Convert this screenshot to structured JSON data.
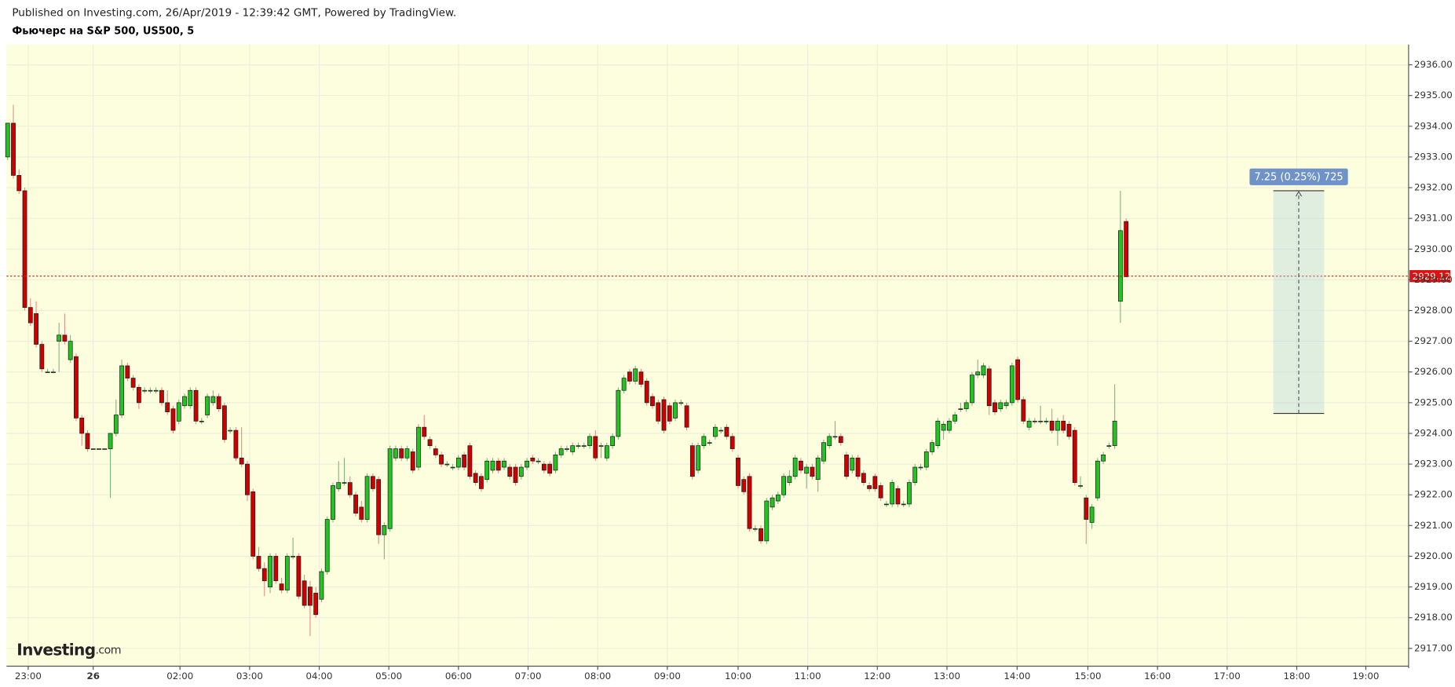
{
  "header": {
    "published": "Published on Investing.com, 26/Apr/2019 - 12:39:42 GMT, Powered by TradingView.",
    "instrument": "Фьючерс на S&P 500, US500, 5"
  },
  "logo": {
    "brand": "Investing",
    "suffix": ".com"
  },
  "chart_data": {
    "type": "candlestick",
    "up_color": "#21c421",
    "down_color": "#cc0000",
    "grid": true,
    "candles": [
      [
        2933.0,
        2934.1,
        2932.9,
        2934.1
      ],
      [
        2934.1,
        2934.7,
        2932.3,
        2932.4
      ],
      [
        2932.4,
        2932.6,
        2931.8,
        2931.9
      ],
      [
        2931.9,
        2932.0,
        2928.0,
        2928.1
      ],
      [
        2928.1,
        2928.4,
        2927.5,
        2927.6
      ],
      [
        2927.9,
        2928.3,
        2926.8,
        2926.9
      ],
      [
        2926.9,
        2927.0,
        2926.0,
        2926.1
      ],
      [
        2926.0,
        2926.1,
        2926.0,
        2926.0
      ],
      [
        2926.0,
        2926.1,
        2926.0,
        2926.0
      ],
      [
        2927.0,
        2927.6,
        2926.0,
        2927.2
      ],
      [
        2927.2,
        2927.9,
        2926.9,
        2927.0
      ],
      [
        2926.4,
        2927.2,
        2926.3,
        2927.0
      ],
      [
        2926.5,
        2926.6,
        2924.4,
        2924.5
      ],
      [
        2924.5,
        2924.6,
        2923.6,
        2924.0
      ],
      [
        2924.0,
        2924.1,
        2923.4,
        2923.5
      ],
      [
        2923.5,
        2923.5,
        2923.5,
        2923.5
      ],
      [
        2923.5,
        2923.5,
        2923.5,
        2923.5
      ],
      [
        2923.5,
        2923.5,
        2923.5,
        2923.5
      ],
      [
        2923.5,
        2924.0,
        2921.9,
        2924.0
      ],
      [
        2924.0,
        2925.1,
        2923.9,
        2924.6
      ],
      [
        2924.6,
        2926.4,
        2924.5,
        2926.2
      ],
      [
        2926.2,
        2926.3,
        2925.7,
        2925.8
      ],
      [
        2925.8,
        2925.9,
        2925.4,
        2925.5
      ],
      [
        2925.5,
        2925.6,
        2924.8,
        2925.0
      ],
      [
        2925.4,
        2925.5,
        2925.3,
        2925.4
      ],
      [
        2925.4,
        2925.5,
        2925.3,
        2925.4
      ],
      [
        2925.4,
        2925.5,
        2925.3,
        2925.4
      ],
      [
        2925.4,
        2925.5,
        2924.9,
        2925.0
      ],
      [
        2925.0,
        2925.4,
        2924.6,
        2924.7
      ],
      [
        2924.8,
        2924.9,
        2924.0,
        2924.1
      ],
      [
        2924.4,
        2925.1,
        2924.3,
        2925.0
      ],
      [
        2924.9,
        2925.3,
        2924.8,
        2925.2
      ],
      [
        2924.9,
        2925.5,
        2924.8,
        2925.4
      ],
      [
        2925.4,
        2925.5,
        2924.3,
        2924.4
      ],
      [
        2924.4,
        2924.5,
        2924.3,
        2924.4
      ],
      [
        2924.6,
        2925.3,
        2924.5,
        2925.2
      ],
      [
        2925.0,
        2925.4,
        2924.9,
        2925.2
      ],
      [
        2925.2,
        2925.3,
        2924.7,
        2924.8
      ],
      [
        2924.9,
        2925.0,
        2923.7,
        2923.8
      ],
      [
        2924.1,
        2924.2,
        2924.0,
        2924.1
      ],
      [
        2924.1,
        2924.2,
        2923.1,
        2923.2
      ],
      [
        2923.2,
        2924.2,
        2922.9,
        2923.0
      ],
      [
        2923.0,
        2923.1,
        2921.8,
        2922.0
      ],
      [
        2922.1,
        2922.2,
        2919.9,
        2920.0
      ],
      [
        2920.0,
        2920.3,
        2919.5,
        2919.6
      ],
      [
        2919.6,
        2919.8,
        2918.7,
        2919.2
      ],
      [
        2919.0,
        2920.1,
        2918.8,
        2920.0
      ],
      [
        2920.0,
        2920.1,
        2919.1,
        2919.2
      ],
      [
        2919.1,
        2919.3,
        2918.8,
        2918.9
      ],
      [
        2918.9,
        2920.1,
        2918.8,
        2920.0
      ],
      [
        2920.0,
        2920.6,
        2919.9,
        2920.0
      ],
      [
        2920.0,
        2920.1,
        2918.6,
        2918.7
      ],
      [
        2919.2,
        2919.4,
        2918.3,
        2918.4
      ],
      [
        2919.0,
        2919.2,
        2917.4,
        2918.4
      ],
      [
        2918.8,
        2919.0,
        2918.0,
        2918.1
      ],
      [
        2918.6,
        2919.6,
        2918.5,
        2919.5
      ],
      [
        2919.5,
        2921.3,
        2919.4,
        2921.2
      ],
      [
        2921.2,
        2922.4,
        2921.1,
        2922.3
      ],
      [
        2922.2,
        2923.1,
        2922.1,
        2922.4
      ],
      [
        2922.4,
        2923.2,
        2922.3,
        2922.4
      ],
      [
        2922.4,
        2922.6,
        2921.9,
        2922.0
      ],
      [
        2922.0,
        2922.1,
        2921.3,
        2921.4
      ],
      [
        2921.6,
        2921.8,
        2921.1,
        2921.2
      ],
      [
        2921.2,
        2922.7,
        2921.1,
        2922.6
      ],
      [
        2922.6,
        2922.7,
        2922.1,
        2922.2
      ],
      [
        2922.5,
        2922.6,
        2920.4,
        2920.7
      ],
      [
        2920.7,
        2921.1,
        2919.9,
        2921.0
      ],
      [
        2920.9,
        2923.6,
        2920.8,
        2923.5
      ],
      [
        2923.2,
        2923.6,
        2923.1,
        2923.5
      ],
      [
        2923.5,
        2923.6,
        2923.1,
        2923.2
      ],
      [
        2923.2,
        2923.6,
        2923.1,
        2923.5
      ],
      [
        2923.4,
        2923.5,
        2922.7,
        2922.8
      ],
      [
        2922.9,
        2924.3,
        2922.8,
        2924.2
      ],
      [
        2924.2,
        2924.6,
        2923.8,
        2923.9
      ],
      [
        2923.8,
        2923.9,
        2923.5,
        2923.6
      ],
      [
        2923.5,
        2923.6,
        2923.2,
        2923.3
      ],
      [
        2923.3,
        2923.4,
        2922.9,
        2923.0
      ],
      [
        2923.0,
        2923.1,
        2922.9,
        2923.0
      ],
      [
        2922.9,
        2923.0,
        2922.8,
        2922.9
      ],
      [
        2922.9,
        2923.3,
        2922.8,
        2923.2
      ],
      [
        2923.3,
        2923.4,
        2922.8,
        2922.9
      ],
      [
        2923.6,
        2923.7,
        2922.5,
        2922.6
      ],
      [
        2922.7,
        2922.8,
        2922.3,
        2922.4
      ],
      [
        2922.6,
        2922.7,
        2922.1,
        2922.2
      ],
      [
        2922.5,
        2923.2,
        2922.4,
        2923.1
      ],
      [
        2922.8,
        2923.2,
        2922.7,
        2923.1
      ],
      [
        2923.1,
        2923.2,
        2922.7,
        2922.8
      ],
      [
        2922.9,
        2923.2,
        2922.8,
        2923.1
      ],
      [
        2922.9,
        2923.0,
        2922.5,
        2922.6
      ],
      [
        2922.9,
        2923.0,
        2922.3,
        2922.4
      ],
      [
        2922.6,
        2923.0,
        2922.5,
        2922.9
      ],
      [
        2922.9,
        2923.2,
        2922.8,
        2923.1
      ],
      [
        2923.2,
        2923.3,
        2923.0,
        2923.1
      ],
      [
        2923.1,
        2923.2,
        2923.0,
        2923.1
      ],
      [
        2923.0,
        2923.1,
        2922.7,
        2922.8
      ],
      [
        2923.0,
        2923.1,
        2922.6,
        2922.7
      ],
      [
        2922.8,
        2923.4,
        2922.7,
        2923.3
      ],
      [
        2923.3,
        2923.6,
        2923.2,
        2923.5
      ],
      [
        2923.5,
        2923.6,
        2923.4,
        2923.5
      ],
      [
        2923.4,
        2923.7,
        2923.3,
        2923.6
      ],
      [
        2923.6,
        2923.7,
        2923.5,
        2923.6
      ],
      [
        2923.6,
        2923.7,
        2923.5,
        2923.6
      ],
      [
        2923.6,
        2924.0,
        2923.5,
        2923.9
      ],
      [
        2923.9,
        2924.1,
        2923.1,
        2923.2
      ],
      [
        2923.6,
        2923.7,
        2923.2,
        2923.6
      ],
      [
        2923.2,
        2923.7,
        2923.1,
        2923.6
      ],
      [
        2923.6,
        2924.0,
        2923.5,
        2923.9
      ],
      [
        2923.9,
        2925.5,
        2923.8,
        2925.4
      ],
      [
        2925.4,
        2925.9,
        2925.3,
        2925.8
      ],
      [
        2926.0,
        2926.1,
        2925.6,
        2925.7
      ],
      [
        2925.7,
        2926.2,
        2925.6,
        2926.1
      ],
      [
        2926.0,
        2926.1,
        2925.5,
        2925.6
      ],
      [
        2925.7,
        2925.8,
        2924.9,
        2925.0
      ],
      [
        2925.2,
        2925.3,
        2924.8,
        2924.9
      ],
      [
        2925.0,
        2925.1,
        2924.3,
        2924.4
      ],
      [
        2925.1,
        2925.2,
        2924.0,
        2924.1
      ],
      [
        2924.9,
        2925.0,
        2924.3,
        2924.4
      ],
      [
        2924.5,
        2925.1,
        2924.4,
        2925.0
      ],
      [
        2925.0,
        2925.1,
        2924.9,
        2925.0
      ],
      [
        2924.9,
        2925.0,
        2924.1,
        2924.2
      ],
      [
        2923.6,
        2923.7,
        2922.5,
        2922.6
      ],
      [
        2922.8,
        2923.7,
        2922.7,
        2923.6
      ],
      [
        2923.6,
        2924.0,
        2923.5,
        2923.9
      ],
      [
        2923.7,
        2923.8,
        2923.6,
        2923.7
      ],
      [
        2923.9,
        2924.3,
        2923.8,
        2924.2
      ],
      [
        2924.1,
        2924.2,
        2924.0,
        2924.1
      ],
      [
        2924.2,
        2924.3,
        2923.8,
        2923.9
      ],
      [
        2923.9,
        2924.0,
        2923.4,
        2923.5
      ],
      [
        2923.2,
        2923.3,
        2922.2,
        2922.3
      ],
      [
        2922.5,
        2922.6,
        2922.0,
        2922.1
      ],
      [
        2922.6,
        2922.7,
        2920.8,
        2920.9
      ],
      [
        2920.9,
        2921.0,
        2920.8,
        2920.9
      ],
      [
        2920.9,
        2921.0,
        2920.4,
        2920.5
      ],
      [
        2920.5,
        2921.9,
        2920.4,
        2921.8
      ],
      [
        2921.6,
        2922.0,
        2921.5,
        2921.9
      ],
      [
        2921.8,
        2922.1,
        2921.7,
        2922.0
      ],
      [
        2922.0,
        2922.7,
        2921.9,
        2922.6
      ],
      [
        2922.4,
        2922.8,
        2922.3,
        2922.6
      ],
      [
        2922.6,
        2923.3,
        2922.5,
        2923.2
      ],
      [
        2923.1,
        2923.2,
        2922.7,
        2922.8
      ],
      [
        2922.7,
        2923.0,
        2922.2,
        2922.9
      ],
      [
        2922.9,
        2923.0,
        2922.5,
        2922.6
      ],
      [
        2922.5,
        2923.3,
        2922.1,
        2923.2
      ],
      [
        2923.1,
        2923.8,
        2923.0,
        2923.7
      ],
      [
        2923.6,
        2924.0,
        2923.5,
        2923.9
      ],
      [
        2923.9,
        2924.4,
        2923.8,
        2923.9
      ],
      [
        2923.9,
        2924.0,
        2923.6,
        2923.7
      ],
      [
        2923.3,
        2923.4,
        2922.5,
        2922.6
      ],
      [
        2922.8,
        2923.3,
        2922.7,
        2923.2
      ],
      [
        2923.2,
        2923.3,
        2922.5,
        2922.6
      ],
      [
        2922.7,
        2922.8,
        2922.3,
        2922.4
      ],
      [
        2922.3,
        2922.4,
        2922.1,
        2922.2
      ],
      [
        2922.6,
        2922.7,
        2922.1,
        2922.2
      ],
      [
        2922.3,
        2922.4,
        2921.8,
        2921.9
      ],
      [
        2921.7,
        2921.8,
        2921.6,
        2921.7
      ],
      [
        2921.7,
        2922.5,
        2921.6,
        2922.4
      ],
      [
        2922.2,
        2922.3,
        2921.6,
        2921.7
      ],
      [
        2921.7,
        2921.8,
        2921.6,
        2921.7
      ],
      [
        2921.7,
        2922.5,
        2921.6,
        2922.4
      ],
      [
        2922.4,
        2923.0,
        2922.3,
        2922.9
      ],
      [
        2922.9,
        2923.0,
        2922.8,
        2922.9
      ],
      [
        2922.9,
        2923.5,
        2922.8,
        2923.4
      ],
      [
        2923.4,
        2923.8,
        2923.3,
        2923.7
      ],
      [
        2923.6,
        2924.5,
        2923.5,
        2924.4
      ],
      [
        2924.1,
        2924.4,
        2923.8,
        2924.3
      ],
      [
        2924.1,
        2924.5,
        2924.0,
        2924.4
      ],
      [
        2924.4,
        2924.7,
        2924.3,
        2924.6
      ],
      [
        2924.8,
        2925.0,
        2924.7,
        2924.8
      ],
      [
        2924.8,
        2925.1,
        2924.7,
        2925.0
      ],
      [
        2925.0,
        2926.0,
        2924.9,
        2925.9
      ],
      [
        2925.9,
        2926.4,
        2925.8,
        2926.0
      ],
      [
        2925.9,
        2926.3,
        2925.8,
        2926.2
      ],
      [
        2926.1,
        2926.2,
        2924.6,
        2924.9
      ],
      [
        2925.0,
        2925.1,
        2924.6,
        2924.7
      ],
      [
        2924.8,
        2925.1,
        2924.7,
        2925.0
      ],
      [
        2924.9,
        2925.1,
        2924.8,
        2925.0
      ],
      [
        2925.0,
        2926.3,
        2924.9,
        2926.2
      ],
      [
        2926.4,
        2926.5,
        2925.0,
        2925.1
      ],
      [
        2925.1,
        2925.2,
        2924.3,
        2924.4
      ],
      [
        2924.2,
        2924.5,
        2924.1,
        2924.4
      ],
      [
        2924.4,
        2924.5,
        2924.3,
        2924.4
      ],
      [
        2924.4,
        2924.9,
        2924.3,
        2924.4
      ],
      [
        2924.4,
        2924.5,
        2924.3,
        2924.4
      ],
      [
        2924.4,
        2924.8,
        2924.0,
        2924.1
      ],
      [
        2924.1,
        2924.5,
        2923.6,
        2924.4
      ],
      [
        2924.4,
        2924.6,
        2924.0,
        2924.1
      ],
      [
        2924.3,
        2924.4,
        2923.8,
        2923.9
      ],
      [
        2924.1,
        2924.2,
        2922.3,
        2922.4
      ],
      [
        2922.3,
        2922.6,
        2922.2,
        2922.3
      ],
      [
        2921.9,
        2922.0,
        2920.4,
        2921.2
      ],
      [
        2921.1,
        2921.7,
        2920.9,
        2921.6
      ],
      [
        2921.9,
        2923.2,
        2921.8,
        2923.1
      ],
      [
        2923.1,
        2923.4,
        2923.0,
        2923.3
      ],
      [
        2923.6,
        2923.7,
        2923.5,
        2923.6
      ],
      [
        2923.6,
        2925.6,
        2923.5,
        2924.4
      ],
      [
        2928.3,
        2931.9,
        2927.6,
        2930.6
      ],
      [
        2930.9,
        2931.0,
        2929.1,
        2929.1
      ]
    ],
    "xlim": [
      -0.2,
      245.5
    ],
    "xticks": [
      {
        "value": 3.6,
        "label": "23:00"
      },
      {
        "value": 15.0,
        "label": "26"
      },
      {
        "value": 30.2,
        "label": "02:00"
      },
      {
        "value": 42.4,
        "label": "03:00"
      },
      {
        "value": 54.6,
        "label": "04:00"
      },
      {
        "value": 66.8,
        "label": "05:00"
      },
      {
        "value": 79.0,
        "label": "06:00"
      },
      {
        "value": 91.2,
        "label": "07:00"
      },
      {
        "value": 103.4,
        "label": "08:00"
      },
      {
        "value": 115.6,
        "label": "09:00"
      },
      {
        "value": 128.0,
        "label": "10:00"
      },
      {
        "value": 140.2,
        "label": "11:00"
      },
      {
        "value": 152.4,
        "label": "12:00"
      },
      {
        "value": 164.6,
        "label": "13:00"
      },
      {
        "value": 176.9,
        "label": "14:00"
      },
      {
        "value": 189.3,
        "label": "15:00"
      },
      {
        "value": 201.5,
        "label": "16:00"
      },
      {
        "value": 213.7,
        "label": "17:00"
      },
      {
        "value": 225.9,
        "label": "18:00"
      },
      {
        "value": 238.0,
        "label": "19:00"
      }
    ],
    "ylim": [
      2916.42,
      2936.66
    ],
    "yticks": [
      {
        "value": 2917,
        "label": "2917.00"
      },
      {
        "value": 2918,
        "label": "2918.00"
      },
      {
        "value": 2919,
        "label": "2919.00"
      },
      {
        "value": 2920,
        "label": "2920.00"
      },
      {
        "value": 2921,
        "label": "2921.00"
      },
      {
        "value": 2922,
        "label": "2922.00"
      },
      {
        "value": 2923,
        "label": "2923.00"
      },
      {
        "value": 2924,
        "label": "2924.00"
      },
      {
        "value": 2925,
        "label": "2925.00"
      },
      {
        "value": 2926,
        "label": "2926.00"
      },
      {
        "value": 2927,
        "label": "2927.00"
      },
      {
        "value": 2928,
        "label": "2928.00"
      },
      {
        "value": 2929,
        "label": "2929.00"
      },
      {
        "value": 2930,
        "label": "2930.00"
      },
      {
        "value": 2931,
        "label": "2931.00"
      },
      {
        "value": 2932,
        "label": "2932.00"
      },
      {
        "value": 2933,
        "label": "2933.00"
      },
      {
        "value": 2934,
        "label": "2934.00"
      },
      {
        "value": 2935,
        "label": "2935.00"
      },
      {
        "value": 2936,
        "label": "2936.00"
      }
    ],
    "last_price": {
      "value": 2929.12,
      "label": "2929.12"
    },
    "measure": {
      "label": "7.25 (0.25%) 725",
      "from": 2924.65,
      "to": 2931.9,
      "x_from": 221.8,
      "x_to": 230.7
    }
  }
}
